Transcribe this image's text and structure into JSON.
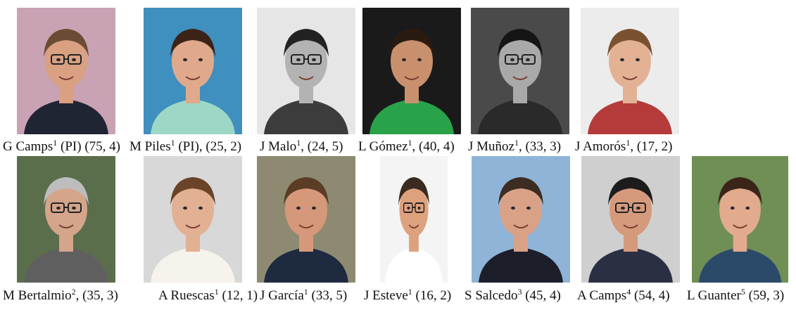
{
  "people": [
    {
      "name": "G Camps",
      "affil": "1",
      "role": " (PI)",
      "sep": "",
      "metric": "(75, 4)",
      "bg": "#c9a2b4",
      "shirt": "#1f2533",
      "hair": "#6b4b33",
      "skin": "#d9a082",
      "glasses": true
    },
    {
      "name": "M Piles",
      "affil": "1",
      "role": " (PI)",
      "sep": ",",
      "metric": "(25, 2)",
      "bg": "#3f8fbf",
      "shirt": "#9dd7c6",
      "hair": "#3b2417",
      "skin": "#e0a98c",
      "glasses": false
    },
    {
      "name": "J Malo",
      "affil": "1",
      "role": "",
      "sep": ",",
      "metric": "(24, 5)",
      "bg": "#e6e6e6",
      "shirt": "#3c3c3c",
      "hair": "#222222",
      "skin": "#b3b3b3",
      "glasses": true
    },
    {
      "name": "L Gómez",
      "affil": "1",
      "role": "",
      "sep": ",",
      "metric": "(40, 4)",
      "bg": "#1a1a1a",
      "shirt": "#2aa24a",
      "hair": "#2a1b12",
      "skin": "#c9906e",
      "glasses": false
    },
    {
      "name": "J Muñoz",
      "affil": "1",
      "role": "",
      "sep": ",",
      "metric": "(33, 3)",
      "bg": "#4a4a4a",
      "shirt": "#2a2a2a",
      "hair": "#151515",
      "skin": "#a9a9a9",
      "glasses": true
    },
    {
      "name": "J Amorós",
      "affil": "1",
      "role": "",
      "sep": ",",
      "metric": "(17, 2)",
      "bg": "#ececec",
      "shirt": "#b53b3b",
      "hair": "#7a5230",
      "skin": "#e3b294",
      "glasses": false
    },
    {
      "name": "M Bertalmio",
      "affil": "2",
      "role": "",
      "sep": ",",
      "metric": "(35, 3)",
      "bg": "#5b6e4b",
      "shirt": "#5f5f5f",
      "hair": "#bdbdbd",
      "skin": "#d4a58b",
      "glasses": true
    },
    {
      "name": "A Ruescas",
      "affil": "1",
      "role": "",
      "sep": "",
      "metric": "(12, 1)",
      "bg": "#d8d8d8",
      "shirt": "#f6f2ec",
      "hair": "#6a4328",
      "skin": "#e2b092",
      "glasses": false
    },
    {
      "name": "J García",
      "affil": "1",
      "role": "",
      "sep": "",
      "metric": "(33, 5)",
      "bg": "#8e8a72",
      "shirt": "#1e2a40",
      "hair": "#5b3d26",
      "skin": "#d6987a",
      "glasses": false
    },
    {
      "name": "J Esteve",
      "affil": "1",
      "role": "",
      "sep": "",
      "metric": "(16, 2)",
      "bg": "#f4f4f4",
      "shirt": "#ffffff",
      "hair": "#3a2a1f",
      "skin": "#dea17e",
      "glasses": true
    },
    {
      "name": "S Salcedo",
      "affil": "3",
      "role": "",
      "sep": "",
      "metric": "(45, 4)",
      "bg": "#8fb4d8",
      "shirt": "#1c1e2a",
      "hair": "#3b2d22",
      "skin": "#d9a287",
      "glasses": false
    },
    {
      "name": "A Camps",
      "affil": "4",
      "role": "",
      "sep": "",
      "metric": "(54, 4)",
      "bg": "#cfcfcf",
      "shirt": "#2a3042",
      "hair": "#1c1c1c",
      "skin": "#d59a7c",
      "glasses": true
    },
    {
      "name": "L Guanter",
      "affil": "5",
      "role": "",
      "sep": "",
      "metric": "(59, 3)",
      "bg": "#6f8f55",
      "shirt": "#2b4a6a",
      "hair": "#3a2618",
      "skin": "#e2ab8e",
      "glasses": false
    }
  ]
}
